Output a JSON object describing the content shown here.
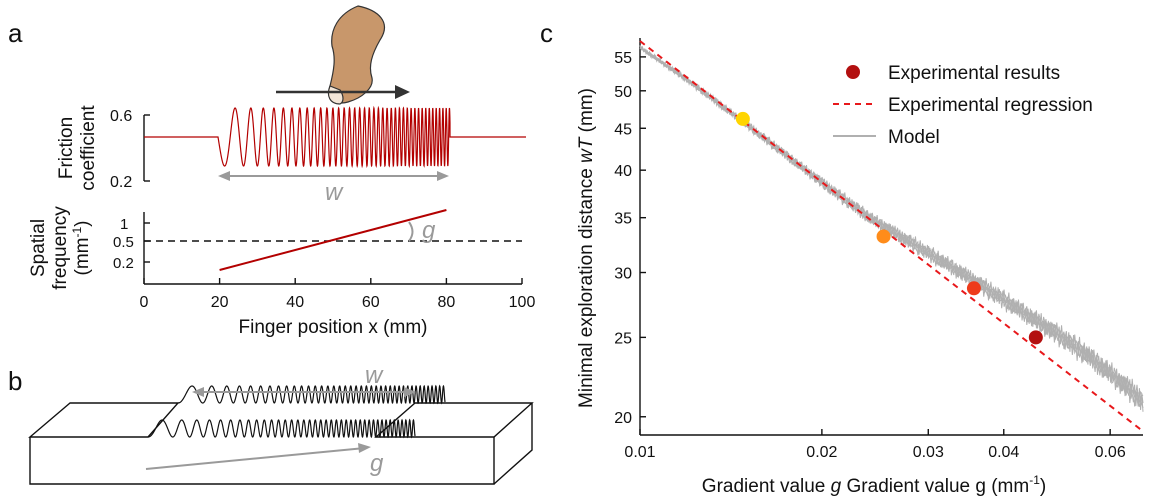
{
  "colors": {
    "red": "#b30000",
    "dashed_red": "#e8181b",
    "gray": "#9a9a9a",
    "model_gray": "#b0b0b0",
    "hand": "#c8976b",
    "dot_colors": [
      "#ffd500",
      "#ff8c1a",
      "#ee3b1b",
      "#b31010"
    ]
  },
  "panels": {
    "a": "a",
    "b": "b",
    "c": "c"
  },
  "panel_a": {
    "top_ylabel_line1": "Friction",
    "top_ylabel_line2": "coefficient",
    "top_ticks": [
      "0.6",
      "0.2"
    ],
    "w_label": "w",
    "g_label": "g",
    "bottom_ylabel_line1": "Spatial",
    "bottom_ylabel_line2": "frequency",
    "bottom_ylabel_line3": "(mm",
    "bottom_ylabel_sup": "-1",
    "bottom_ylabel_close": ")",
    "bottom_yticks": [
      "1",
      "0.5",
      "0.2"
    ],
    "xticks": [
      "0",
      "20",
      "40",
      "60",
      "80",
      "100"
    ],
    "xlabel": "Finger position x (mm)"
  },
  "panel_b": {
    "w_label": "w",
    "g_label": "g"
  },
  "chart_data": [
    {
      "type": "line",
      "panel": "a-bottom",
      "xlabel": "Finger position x (mm)",
      "x_range": [
        0,
        100
      ],
      "series": [
        {
          "x": [
            20,
            80
          ],
          "y": [
            0.13,
            1.2
          ]
        },
        {
          "x": [
            0,
            100
          ],
          "y": [
            0.5,
            0.5
          ],
          "style": "dashed"
        }
      ]
    },
    {
      "type": "scatter",
      "panel": "c",
      "xlabel": "Gradient value g (mm",
      "xlabel_sup": "-1",
      "xlabel_close": ")",
      "ylabel": "Minimal exploration distance wT (mm)",
      "x_scale": "log",
      "y_scale": "log",
      "x_range": [
        0.01,
        0.068
      ],
      "y_range": [
        19,
        58
      ],
      "x_ticks": [
        0.01,
        0.02,
        0.03,
        0.04,
        0.06
      ],
      "x_tick_labels": [
        "0.01",
        "0.02",
        "0.03",
        "0.04",
        "0.06"
      ],
      "y_ticks": [
        20,
        25,
        30,
        35,
        40,
        45,
        50,
        55
      ],
      "y_tick_labels": [
        "20",
        "25",
        "30",
        "35",
        "40",
        "45",
        "50",
        "55"
      ],
      "legend": [
        "Experimental results",
        "Experimental regression",
        "Model"
      ],
      "experimental_results": {
        "x": [
          0.0148,
          0.0253,
          0.0357,
          0.0452
        ],
        "y": [
          46.2,
          33.2,
          28.7,
          25.0
        ]
      },
      "regression": {
        "x": [
          0.01,
          0.068
        ],
        "y": [
          57.5,
          19.2
        ]
      },
      "model": {
        "x": [
          0.01,
          0.012,
          0.015,
          0.018,
          0.021,
          0.024,
          0.027,
          0.03,
          0.033,
          0.036,
          0.04,
          0.045,
          0.05,
          0.055,
          0.06,
          0.065,
          0.068
        ],
        "y": [
          56.5,
          51.5,
          45.5,
          41.0,
          37.6,
          35.0,
          33.2,
          31.7,
          30.4,
          29.2,
          27.8,
          26.3,
          25.0,
          23.8,
          22.6,
          21.5,
          20.9
        ]
      }
    }
  ]
}
